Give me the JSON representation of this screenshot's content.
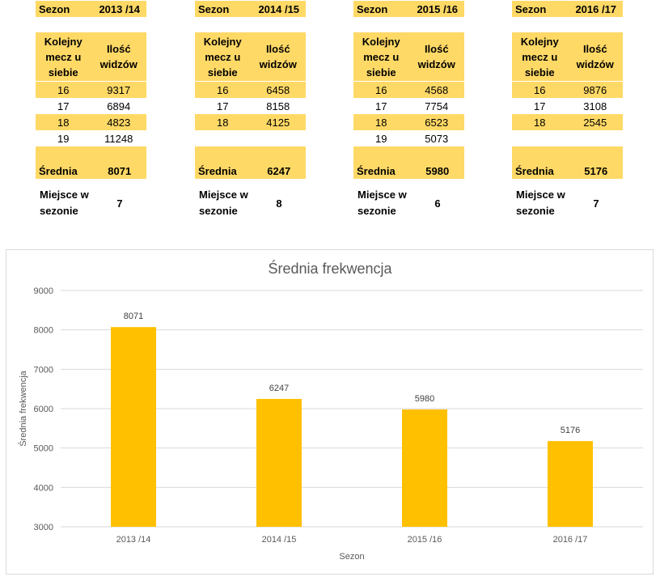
{
  "tables": [
    {
      "season_label": "Sezon",
      "season": "2013 /14",
      "col1": "Kolejny mecz u siebie",
      "col2": "Ilość widzów",
      "rows": [
        [
          "16",
          "9317"
        ],
        [
          "17",
          "6894"
        ],
        [
          "18",
          "4823"
        ],
        [
          "19",
          "11248"
        ]
      ],
      "avg_label": "Średnia",
      "avg": "8071",
      "place_label": "Miejsce w sezonie",
      "place": "7"
    },
    {
      "season_label": "Sezon",
      "season": "2014 /15",
      "col1": "Kolejny mecz u siebie",
      "col2": "Ilość widzów",
      "rows": [
        [
          "16",
          "6458"
        ],
        [
          "17",
          "8158"
        ],
        [
          "18",
          "4125"
        ]
      ],
      "avg_label": "Średnia",
      "avg": "6247",
      "place_label": "Miejsce w sezonie",
      "place": "8"
    },
    {
      "season_label": "Sezon",
      "season": "2015 /16",
      "col1": "Kolejny mecz u siebie",
      "col2": "Ilość widzów",
      "rows": [
        [
          "16",
          "4568"
        ],
        [
          "17",
          "7754"
        ],
        [
          "18",
          "6523"
        ],
        [
          "19",
          "5073"
        ]
      ],
      "avg_label": "Średnia",
      "avg": "5980",
      "place_label": "Miejsce w sezonie",
      "place": "6"
    },
    {
      "season_label": "Sezon",
      "season": "2016 /17",
      "col1": "Kolejny mecz u siebie",
      "col2": "Ilość widzów",
      "rows": [
        [
          "16",
          "9876"
        ],
        [
          "17",
          "3108"
        ],
        [
          "18",
          "2545"
        ]
      ],
      "avg_label": "Średnia",
      "avg": "5176",
      "place_label": "Miejsce w sezonie",
      "place": "7"
    }
  ],
  "colors": {
    "table_fill": "#ffd966",
    "bar": "#ffc000",
    "grid": "#d9d9d9",
    "axis_text": "#595959"
  },
  "chart_data": {
    "type": "bar",
    "title": "Średnia frekwencja",
    "xlabel": "Sezon",
    "ylabel": "Średnia frekwencja",
    "categories": [
      "2013 /14",
      "2014 /15",
      "2015 /16",
      "2016 /17"
    ],
    "values": [
      8071,
      6247,
      5980,
      5176
    ],
    "ylim": [
      3000,
      9000
    ],
    "yticks": [
      3000,
      4000,
      5000,
      6000,
      7000,
      8000,
      9000
    ],
    "grid": true,
    "data_labels": true
  }
}
